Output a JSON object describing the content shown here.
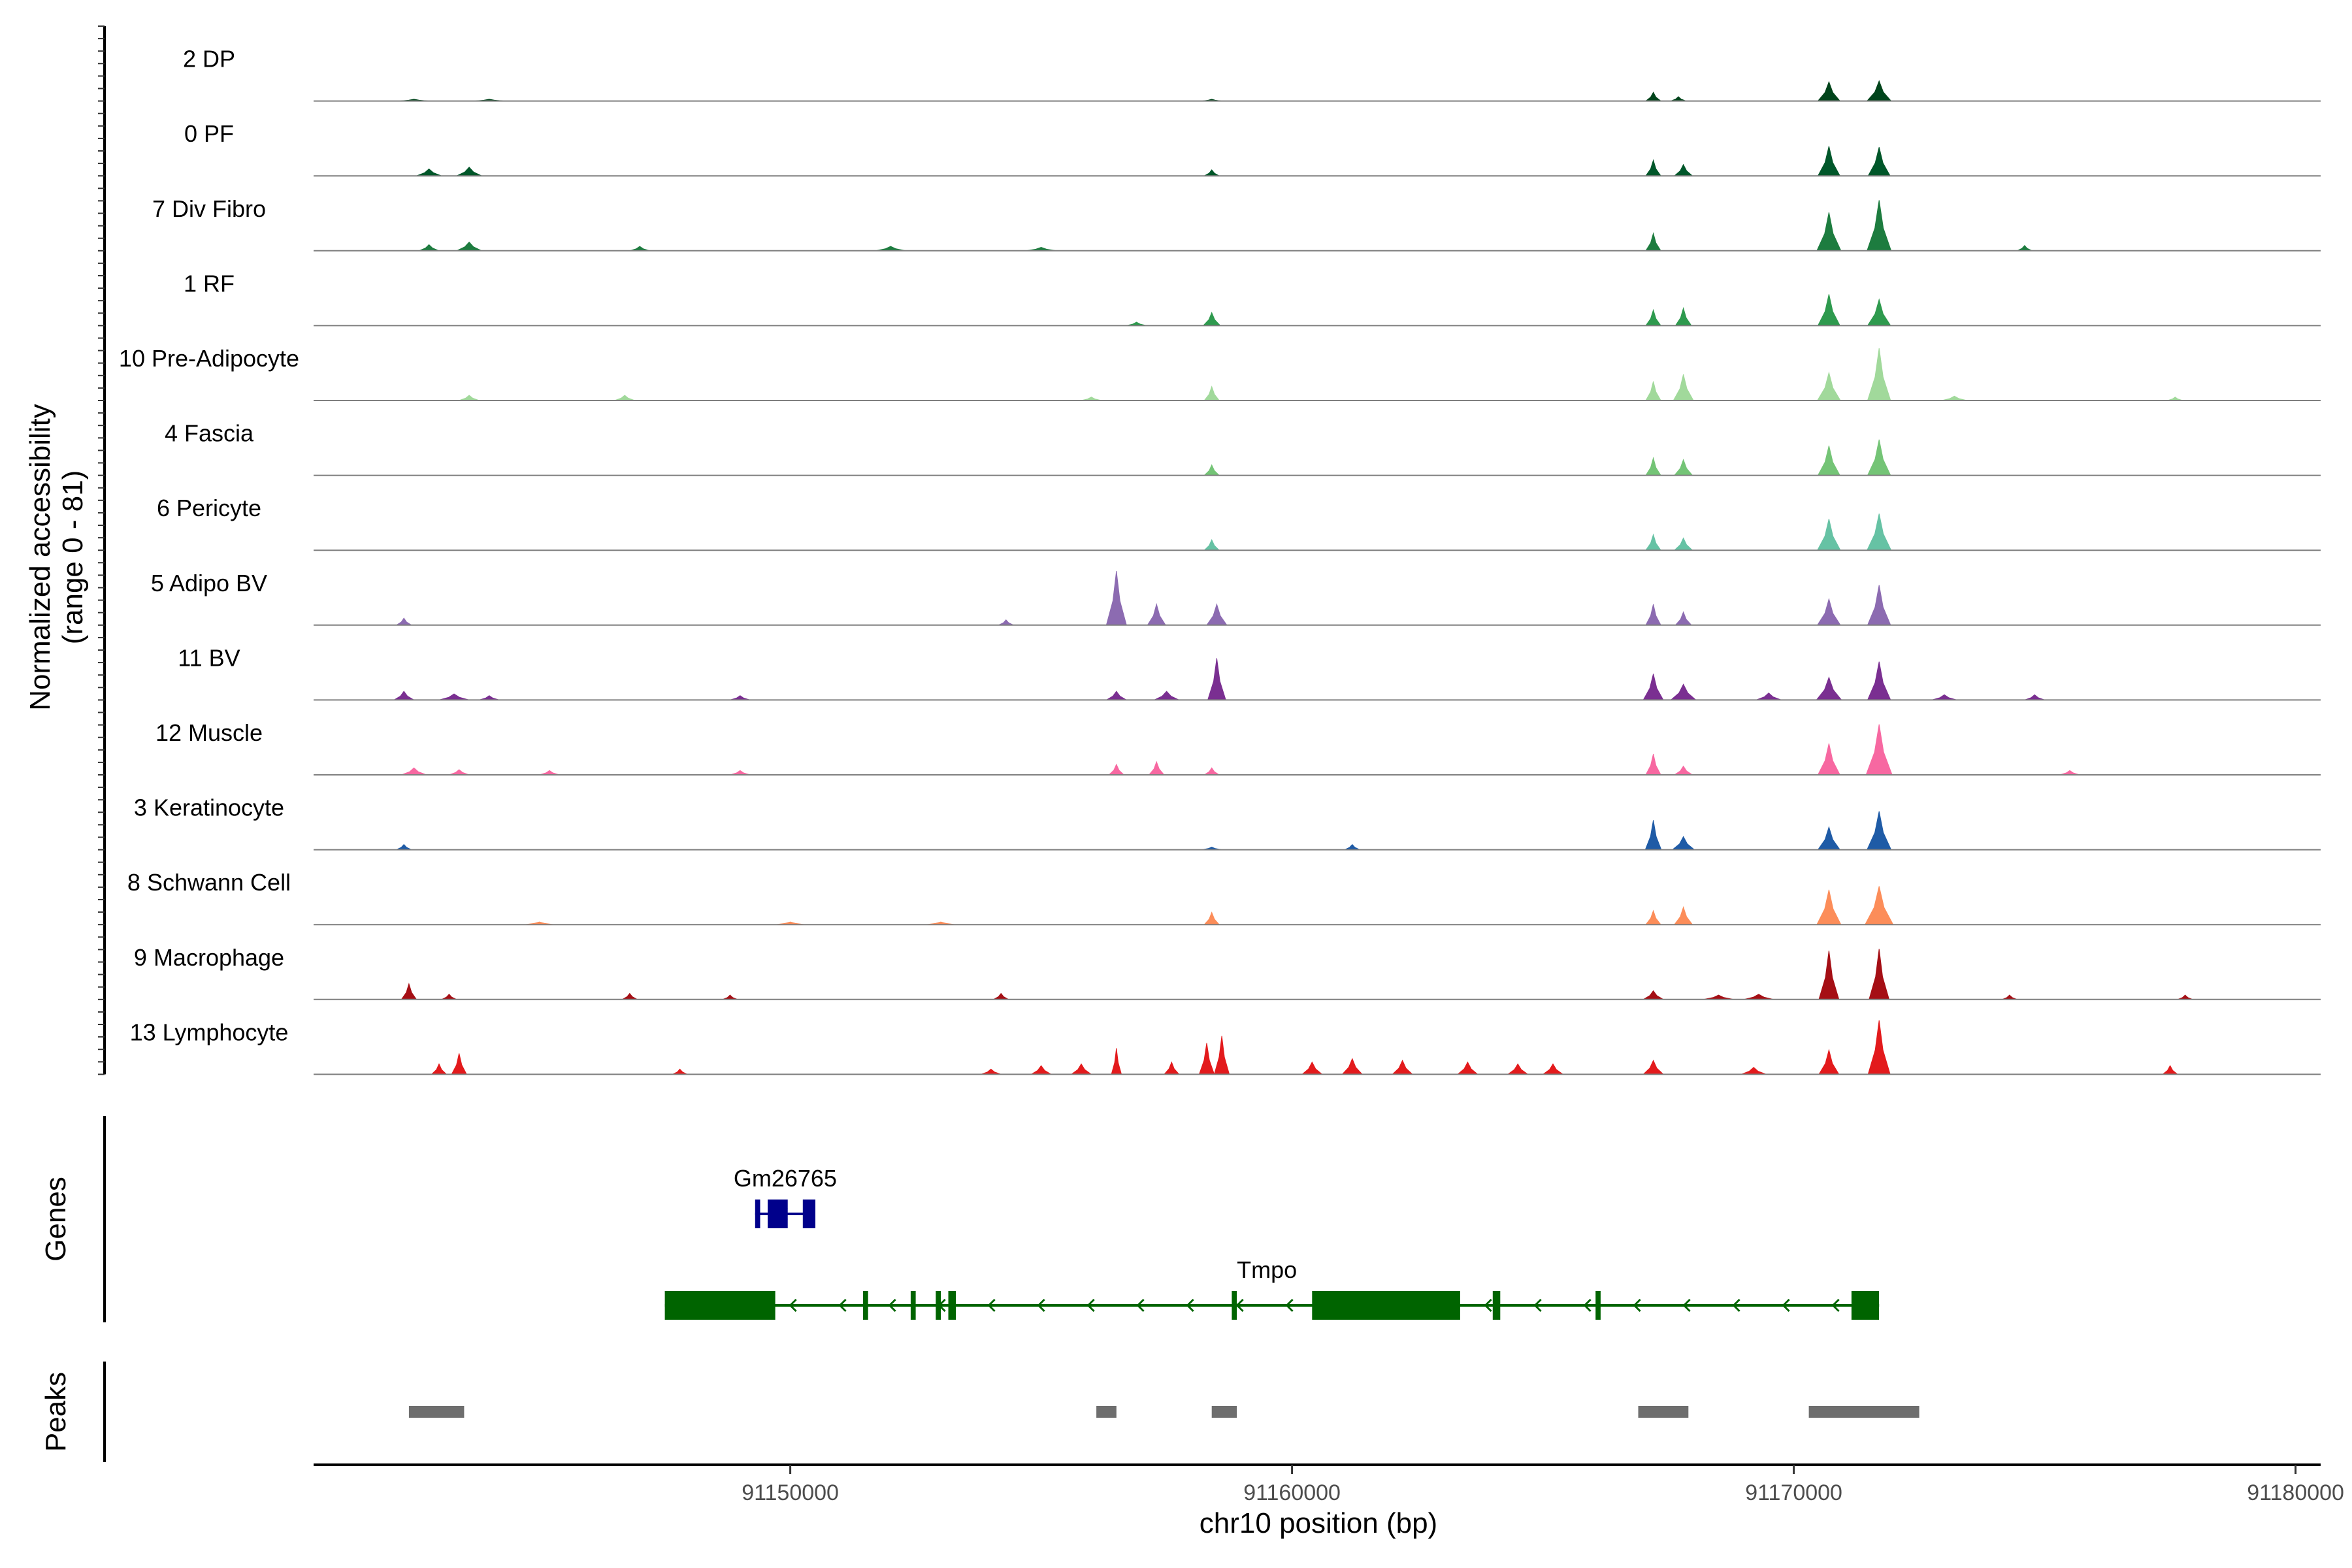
{
  "chart_data": {
    "type": "area",
    "title": "",
    "ylabel_line1": "Normalized accessibility",
    "ylabel_line2": "(range 0 - 81)",
    "xlabel": "chr10 position (bp)",
    "ylim": [
      0,
      81
    ],
    "xlim": [
      91140500,
      91180500
    ],
    "xticks": [
      91150000,
      91160000,
      91170000,
      91180000
    ],
    "xtick_labels": [
      "91150000",
      "91160000",
      "91170000",
      "91180000"
    ],
    "series": [
      {
        "name": "2 DP",
        "color": "#00441b",
        "peaks": [
          [
            91158400,
            2,
            200
          ],
          [
            91167200,
            10,
            150
          ],
          [
            91167700,
            5,
            150
          ],
          [
            91170700,
            22,
            220
          ],
          [
            91171700,
            23,
            240
          ],
          [
            91142500,
            2,
            300
          ],
          [
            91144000,
            2,
            300
          ]
        ]
      },
      {
        "name": "0 PF",
        "color": "#00572a",
        "peaks": [
          [
            91142800,
            8,
            250
          ],
          [
            91143600,
            10,
            250
          ],
          [
            91158400,
            7,
            150
          ],
          [
            91167200,
            18,
            150
          ],
          [
            91167800,
            13,
            180
          ],
          [
            91170700,
            34,
            220
          ],
          [
            91171700,
            33,
            220
          ]
        ]
      },
      {
        "name": "7 Div Fibro",
        "color": "#1d7c3f",
        "peaks": [
          [
            91142800,
            7,
            200
          ],
          [
            91143600,
            10,
            250
          ],
          [
            91147000,
            5,
            200
          ],
          [
            91152000,
            5,
            300
          ],
          [
            91155000,
            4,
            300
          ],
          [
            91167200,
            20,
            150
          ],
          [
            91170700,
            44,
            240
          ],
          [
            91171700,
            58,
            240
          ],
          [
            91174600,
            6,
            150
          ]
        ]
      },
      {
        "name": "1 RF",
        "color": "#2e9a4e",
        "peaks": [
          [
            91156900,
            4,
            200
          ],
          [
            91158400,
            15,
            170
          ],
          [
            91167200,
            18,
            150
          ],
          [
            91167800,
            20,
            160
          ],
          [
            91170700,
            36,
            220
          ],
          [
            91171700,
            30,
            230
          ]
        ]
      },
      {
        "name": "10 Pre-Adipocyte",
        "color": "#a1d99b",
        "peaks": [
          [
            91143600,
            6,
            200
          ],
          [
            91146700,
            6,
            200
          ],
          [
            91156000,
            4,
            200
          ],
          [
            91158400,
            16,
            150
          ],
          [
            91167200,
            22,
            150
          ],
          [
            91167800,
            30,
            200
          ],
          [
            91170700,
            32,
            230
          ],
          [
            91171700,
            60,
            230
          ],
          [
            91173200,
            5,
            250
          ],
          [
            91177600,
            4,
            150
          ]
        ]
      },
      {
        "name": "4 Fascia",
        "color": "#74c476",
        "peaks": [
          [
            91158400,
            12,
            150
          ],
          [
            91167200,
            20,
            150
          ],
          [
            91167800,
            18,
            180
          ],
          [
            91170700,
            34,
            220
          ],
          [
            91171700,
            41,
            230
          ]
        ]
      },
      {
        "name": "6 Pericyte",
        "color": "#66c2a4",
        "peaks": [
          [
            91158400,
            12,
            150
          ],
          [
            91167200,
            18,
            150
          ],
          [
            91167800,
            14,
            180
          ],
          [
            91170700,
            36,
            230
          ],
          [
            91171700,
            42,
            240
          ]
        ]
      },
      {
        "name": "5 Adipo BV",
        "color": "#8c6bb1",
        "peaks": [
          [
            91142300,
            8,
            150
          ],
          [
            91154300,
            6,
            150
          ],
          [
            91156500,
            62,
            200
          ],
          [
            91157300,
            24,
            180
          ],
          [
            91158500,
            24,
            200
          ],
          [
            91167200,
            24,
            150
          ],
          [
            91167800,
            15,
            160
          ],
          [
            91170700,
            30,
            230
          ],
          [
            91171700,
            46,
            230
          ]
        ]
      },
      {
        "name": "11 BV",
        "color": "#7a2f91",
        "peaks": [
          [
            91142300,
            10,
            200
          ],
          [
            91143300,
            7,
            300
          ],
          [
            91144000,
            5,
            200
          ],
          [
            91149000,
            5,
            200
          ],
          [
            91156500,
            10,
            200
          ],
          [
            91157500,
            10,
            250
          ],
          [
            91158500,
            48,
            180
          ],
          [
            91167200,
            30,
            200
          ],
          [
            91167800,
            18,
            250
          ],
          [
            91169500,
            8,
            250
          ],
          [
            91170700,
            26,
            250
          ],
          [
            91171700,
            44,
            230
          ],
          [
            91173000,
            6,
            250
          ],
          [
            91174800,
            6,
            200
          ]
        ]
      },
      {
        "name": "12 Muscle",
        "color": "#f768a1",
        "peaks": [
          [
            91142500,
            8,
            250
          ],
          [
            91143400,
            6,
            200
          ],
          [
            91145200,
            5,
            200
          ],
          [
            91149000,
            5,
            200
          ],
          [
            91156500,
            12,
            150
          ],
          [
            91157300,
            15,
            150
          ],
          [
            91158400,
            8,
            150
          ],
          [
            91167200,
            24,
            150
          ],
          [
            91167800,
            10,
            180
          ],
          [
            91170700,
            36,
            220
          ],
          [
            91171700,
            58,
            260
          ],
          [
            91175500,
            5,
            200
          ]
        ]
      },
      {
        "name": "3 Keratinocyte",
        "color": "#1f5ba6",
        "peaks": [
          [
            91142300,
            6,
            150
          ],
          [
            91161200,
            6,
            150
          ],
          [
            91167200,
            34,
            160
          ],
          [
            91167800,
            15,
            220
          ],
          [
            91170700,
            26,
            220
          ],
          [
            91171700,
            44,
            240
          ],
          [
            91158400,
            3,
            200
          ]
        ]
      },
      {
        "name": "8 Schwann Cell",
        "color": "#fc8d59",
        "peaks": [
          [
            91145000,
            3,
            300
          ],
          [
            91150000,
            3,
            300
          ],
          [
            91153000,
            3,
            300
          ],
          [
            91158400,
            14,
            150
          ],
          [
            91167200,
            16,
            150
          ],
          [
            91167800,
            20,
            180
          ],
          [
            91170700,
            40,
            240
          ],
          [
            91171700,
            44,
            280
          ]
        ]
      },
      {
        "name": "9 Macrophage",
        "color": "#a50f15",
        "peaks": [
          [
            91142400,
            18,
            150
          ],
          [
            91143200,
            6,
            150
          ],
          [
            91146800,
            7,
            150
          ],
          [
            91148800,
            5,
            150
          ],
          [
            91154200,
            7,
            150
          ],
          [
            91167200,
            10,
            200
          ],
          [
            91168500,
            5,
            300
          ],
          [
            91169300,
            6,
            300
          ],
          [
            91170700,
            56,
            200
          ],
          [
            91171700,
            58,
            200
          ],
          [
            91174300,
            5,
            150
          ],
          [
            91177800,
            5,
            150
          ]
        ]
      },
      {
        "name": "13 Lymphocyte",
        "color": "#e31a1c",
        "peaks": [
          [
            91143000,
            12,
            150
          ],
          [
            91143400,
            24,
            150
          ],
          [
            91147800,
            6,
            150
          ],
          [
            91154000,
            6,
            200
          ],
          [
            91155000,
            10,
            200
          ],
          [
            91155800,
            12,
            200
          ],
          [
            91156500,
            30,
            100
          ],
          [
            91157600,
            14,
            150
          ],
          [
            91158300,
            36,
            150
          ],
          [
            91158600,
            44,
            150
          ],
          [
            91160400,
            14,
            200
          ],
          [
            91161200,
            18,
            200
          ],
          [
            91162200,
            16,
            200
          ],
          [
            91163500,
            14,
            200
          ],
          [
            91164500,
            12,
            200
          ],
          [
            91165200,
            12,
            200
          ],
          [
            91167200,
            16,
            200
          ],
          [
            91169200,
            8,
            250
          ],
          [
            91170700,
            28,
            200
          ],
          [
            91171700,
            62,
            220
          ],
          [
            91177500,
            10,
            150
          ]
        ]
      }
    ],
    "genes": [
      {
        "name": "Gm26765",
        "color": "#00008b",
        "strand": "-",
        "start": 91149300,
        "end": 91150500,
        "exons": [
          [
            91149300,
            91149400
          ],
          [
            91149550,
            91149950
          ],
          [
            91150250,
            91150500
          ]
        ]
      },
      {
        "name": "Tmpo",
        "color": "#006400",
        "strand": "-",
        "start": 91147500,
        "end": 91171700,
        "exons": [
          [
            91147500,
            91149700
          ],
          [
            91151450,
            91151550
          ],
          [
            91152400,
            91152500
          ],
          [
            91152900,
            91153000
          ],
          [
            91153150,
            91153300
          ],
          [
            91158800,
            91158900
          ],
          [
            91160400,
            91163350
          ],
          [
            91164000,
            91164150
          ],
          [
            91166050,
            91166150
          ],
          [
            91171150,
            91171700
          ]
        ]
      }
    ],
    "peaks_track": [
      [
        91142400,
        91143500
      ],
      [
        91156100,
        91156500
      ],
      [
        91158400,
        91158900
      ],
      [
        91166900,
        91167900
      ],
      [
        91170300,
        91172500
      ]
    ],
    "genes_label": "Genes",
    "peaks_label": "Peaks"
  }
}
